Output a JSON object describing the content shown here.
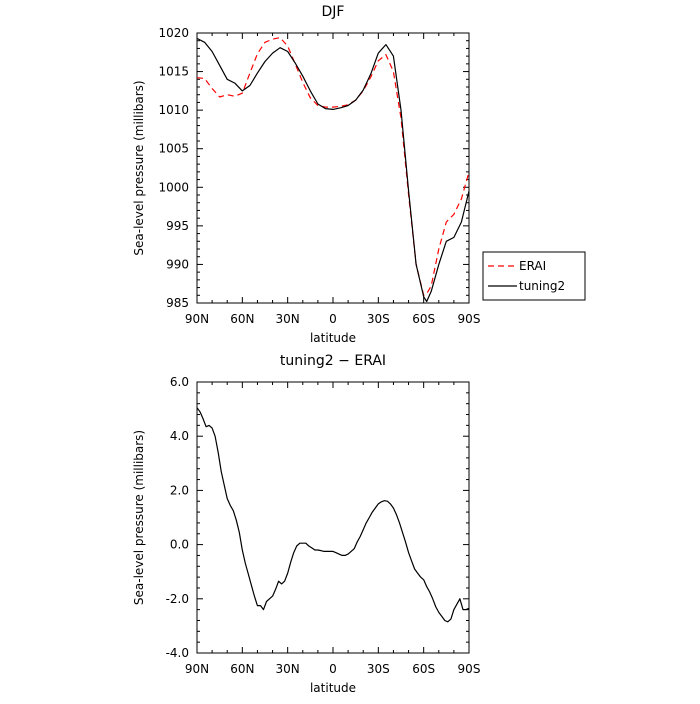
{
  "chart_data": [
    {
      "type": "line",
      "title": "DJF",
      "xlabel": "latitude",
      "ylabel": "Sea-level pressure (millibars)",
      "xlim": [
        90,
        -90
      ],
      "ylim": [
        985,
        1020
      ],
      "xticks": [
        90,
        60,
        30,
        0,
        -30,
        -60,
        -90
      ],
      "xtick_labels": [
        "90N",
        "60N",
        "30N",
        "0",
        "30S",
        "60S",
        "90S"
      ],
      "yticks": [
        985,
        990,
        995,
        1000,
        1005,
        1010,
        1015,
        1020
      ],
      "ytick_labels": [
        "985",
        "990",
        "995",
        "1000",
        "1005",
        "1010",
        "1015",
        "1020"
      ],
      "legend": "right",
      "series": [
        {
          "name": "ERAI",
          "color": "#ff0000",
          "dash": true,
          "x": [
            90,
            85,
            80,
            75,
            70,
            65,
            60,
            55,
            50,
            45,
            40,
            35,
            30,
            25,
            20,
            15,
            10,
            5,
            0,
            -5,
            -10,
            -15,
            -20,
            -25,
            -30,
            -35,
            -40,
            -45,
            -50,
            -55,
            -60,
            -62,
            -65,
            -70,
            -75,
            -80,
            -85,
            -90
          ],
          "values": [
            1014.2,
            1014.1,
            1012.8,
            1011.7,
            1012.0,
            1011.8,
            1012.2,
            1014.8,
            1017.3,
            1018.8,
            1019.2,
            1019.4,
            1018.3,
            1016.0,
            1013.6,
            1011.6,
            1010.6,
            1010.4,
            1010.4,
            1010.5,
            1010.7,
            1011.3,
            1012.5,
            1014.3,
            1016.4,
            1017.2,
            1015.0,
            1009.0,
            999.0,
            990.0,
            986.0,
            986.2,
            987.2,
            992.0,
            995.5,
            996.5,
            998.5,
            1002.0
          ]
        },
        {
          "name": "tuning2",
          "color": "#000000",
          "dash": false,
          "x": [
            90,
            85,
            80,
            75,
            70,
            65,
            60,
            55,
            50,
            45,
            40,
            35,
            30,
            25,
            20,
            15,
            10,
            5,
            0,
            -5,
            -10,
            -15,
            -20,
            -25,
            -30,
            -35,
            -40,
            -45,
            -50,
            -55,
            -60,
            -62,
            -65,
            -70,
            -75,
            -80,
            -85,
            -90
          ],
          "values": [
            1019.3,
            1018.8,
            1017.6,
            1015.8,
            1014.0,
            1013.5,
            1012.5,
            1013.2,
            1014.8,
            1016.3,
            1017.4,
            1018.1,
            1017.6,
            1016.1,
            1014.4,
            1012.5,
            1010.8,
            1010.2,
            1010.1,
            1010.3,
            1010.6,
            1011.3,
            1012.6,
            1014.7,
            1017.4,
            1018.5,
            1017.0,
            1010.0,
            999.5,
            990.0,
            985.8,
            985.2,
            986.5,
            990.0,
            993.0,
            993.5,
            995.5,
            999.5
          ]
        }
      ]
    },
    {
      "type": "line",
      "title": "tuning2 − ERAI",
      "xlabel": "latitude",
      "ylabel": "Sea-level pressure (millibars)",
      "xlim": [
        90,
        -90
      ],
      "ylim": [
        -4,
        6
      ],
      "xticks": [
        90,
        60,
        30,
        0,
        -30,
        -60,
        -90
      ],
      "xtick_labels": [
        "90N",
        "60N",
        "30N",
        "0",
        "30S",
        "60S",
        "90S"
      ],
      "yticks": [
        -4,
        -2,
        0,
        2,
        4,
        6
      ],
      "ytick_labels": [
        "-4.0",
        "-2.0",
        "0.0",
        "2.0",
        "4.0",
        "6.0"
      ],
      "series": [
        {
          "color": "#000000",
          "dash": false,
          "x": [
            90,
            88,
            86,
            84,
            82,
            80,
            78,
            76,
            74,
            72,
            70,
            68,
            66,
            64,
            62,
            60,
            58,
            56,
            54,
            52,
            50,
            48,
            46,
            44,
            42,
            40,
            38,
            36,
            34,
            32,
            30,
            28,
            26,
            24,
            22,
            20,
            18,
            16,
            14,
            12,
            10,
            8,
            6,
            4,
            2,
            0,
            -2,
            -4,
            -6,
            -8,
            -10,
            -12,
            -14,
            -16,
            -18,
            -20,
            -22,
            -24,
            -26,
            -28,
            -30,
            -32,
            -34,
            -36,
            -38,
            -40,
            -42,
            -44,
            -46,
            -48,
            -50,
            -52,
            -54,
            -56,
            -58,
            -60,
            -62,
            -64,
            -66,
            -68,
            -70,
            -72,
            -74,
            -76,
            -78,
            -80,
            -82,
            -84,
            -86,
            -88,
            -90
          ],
          "values": [
            5.05,
            4.9,
            4.65,
            4.35,
            4.4,
            4.3,
            4.0,
            3.4,
            2.7,
            2.2,
            1.7,
            1.45,
            1.25,
            0.9,
            0.45,
            -0.2,
            -0.7,
            -1.1,
            -1.5,
            -1.9,
            -2.25,
            -2.25,
            -2.4,
            -2.1,
            -2.0,
            -1.9,
            -1.65,
            -1.35,
            -1.45,
            -1.35,
            -1.05,
            -0.65,
            -0.3,
            -0.05,
            0.05,
            0.05,
            0.05,
            -0.05,
            -0.12,
            -0.2,
            -0.2,
            -0.22,
            -0.25,
            -0.25,
            -0.25,
            -0.25,
            -0.3,
            -0.35,
            -0.4,
            -0.4,
            -0.35,
            -0.25,
            -0.15,
            0.1,
            0.3,
            0.55,
            0.8,
            1.0,
            1.2,
            1.35,
            1.5,
            1.58,
            1.62,
            1.6,
            1.5,
            1.35,
            1.1,
            0.8,
            0.45,
            0.1,
            -0.3,
            -0.6,
            -0.9,
            -1.05,
            -1.2,
            -1.3,
            -1.55,
            -1.75,
            -2.0,
            -2.3,
            -2.5,
            -2.65,
            -2.8,
            -2.85,
            -2.75,
            -2.4,
            -2.2,
            -2.0,
            -2.4,
            -2.4,
            -2.35
          ]
        }
      ]
    }
  ]
}
